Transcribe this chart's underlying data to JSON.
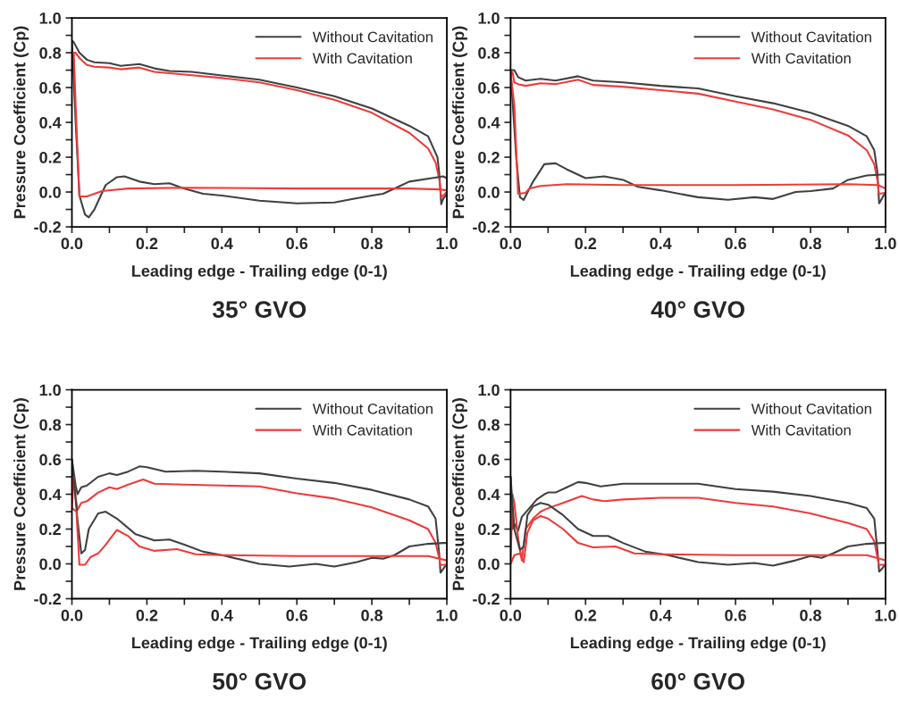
{
  "chart_data": [
    {
      "type": "line",
      "title": "35° GVO",
      "xlabel": "Leading edge - Trailing edge (0-1)",
      "ylabel": "Pressure Coefficient (Cp)",
      "xlim": [
        0,
        1
      ],
      "ylim": [
        -0.2,
        1
      ],
      "legend": "top right",
      "grid": false,
      "xticks": [
        {
          "value": 0,
          "label": "0.0"
        },
        {
          "value": 0.1,
          "label": null
        },
        {
          "value": 0.2,
          "label": "0.2"
        },
        {
          "value": 0.3,
          "label": null
        },
        {
          "value": 0.4,
          "label": "0.4"
        },
        {
          "value": 0.5,
          "label": null
        },
        {
          "value": 0.6,
          "label": "0.6"
        },
        {
          "value": 0.7,
          "label": null
        },
        {
          "value": 0.8,
          "label": "0.8"
        },
        {
          "value": 0.9,
          "label": null
        },
        {
          "value": 1,
          "label": "1.0"
        }
      ],
      "yticks": [
        {
          "value": -0.2,
          "label": "-0.2"
        },
        {
          "value": -0.1,
          "label": null
        },
        {
          "value": 0,
          "label": "0.0"
        },
        {
          "value": 0.1,
          "label": null
        },
        {
          "value": 0.2,
          "label": "0.2"
        },
        {
          "value": 0.3,
          "label": null
        },
        {
          "value": 0.4,
          "label": "0.4"
        },
        {
          "value": 0.5,
          "label": null
        },
        {
          "value": 0.6,
          "label": "0.6"
        },
        {
          "value": 0.7,
          "label": null
        },
        {
          "value": 0.8,
          "label": "0.8"
        },
        {
          "value": 0.9,
          "label": null
        },
        {
          "value": 1,
          "label": "1.0"
        }
      ],
      "series": [
        {
          "name": "Without Cavitation",
          "color": "#404040",
          "x": [
            0,
            0.005,
            0.02,
            0.04,
            0.06,
            0.1,
            0.13,
            0.18,
            0.22,
            0.26,
            0.32,
            0.4,
            0.5,
            0.6,
            0.7,
            0.8,
            0.9,
            0.95,
            0.975,
            0.98,
            0.985,
            0.99,
            1.0
          ],
          "values": [
            0.87,
            0.86,
            0.8,
            0.76,
            0.745,
            0.74,
            0.725,
            0.735,
            0.71,
            0.695,
            0.69,
            0.67,
            0.645,
            0.6,
            0.55,
            0.48,
            0.38,
            0.32,
            0.2,
            0.1,
            -0.07,
            -0.04,
            -0.01
          ]
        },
        {
          "name": "With Cavitation",
          "color": "#ee3b3b",
          "x": [
            0,
            0.01,
            0.02,
            0.04,
            0.06,
            0.1,
            0.13,
            0.18,
            0.22,
            0.3,
            0.4,
            0.5,
            0.6,
            0.7,
            0.8,
            0.9,
            0.95,
            0.97,
            0.98,
            0.985,
            1.0
          ],
          "values": [
            0.8,
            0.8,
            0.77,
            0.73,
            0.72,
            0.715,
            0.705,
            0.715,
            0.69,
            0.675,
            0.655,
            0.63,
            0.585,
            0.53,
            0.455,
            0.34,
            0.25,
            0.17,
            0.07,
            -0.03,
            0.0
          ]
        },
        {
          "color": "#404040",
          "x": [
            0,
            0.01,
            0.02,
            0.035,
            0.045,
            0.06,
            0.09,
            0.12,
            0.14,
            0.18,
            0.22,
            0.26,
            0.3,
            0.35,
            0.4,
            0.5,
            0.6,
            0.7,
            0.75,
            0.8,
            0.83,
            0.87,
            0.9,
            0.96,
            0.99,
            1.0
          ],
          "values": [
            0.87,
            0.4,
            -0.02,
            -0.13,
            -0.145,
            -0.1,
            0.04,
            0.085,
            0.09,
            0.06,
            0.045,
            0.05,
            0.02,
            -0.01,
            -0.02,
            -0.05,
            -0.065,
            -0.06,
            -0.04,
            -0.02,
            -0.01,
            0.03,
            0.06,
            0.08,
            0.09,
            0.08
          ]
        },
        {
          "color": "#ee3b3b",
          "x": [
            0,
            0.005,
            0.01,
            0.02,
            0.04,
            0.08,
            0.15,
            0.3,
            0.6,
            0.9,
            0.98,
            1.0
          ],
          "values": [
            0.8,
            0.8,
            0.5,
            -0.025,
            -0.025,
            0.005,
            0.02,
            0.025,
            0.02,
            0.02,
            0.015,
            0.01
          ]
        }
      ]
    },
    {
      "type": "line",
      "title": "40° GVO",
      "xlabel": "Leading edge - Trailing edge (0-1)",
      "ylabel": "Pressure Coefficient (Cp)",
      "xlim": [
        0,
        1
      ],
      "ylim": [
        -0.2,
        1
      ],
      "legend": "top right",
      "grid": false,
      "xticks": [
        {
          "value": 0,
          "label": "0.0"
        },
        {
          "value": 0.1,
          "label": null
        },
        {
          "value": 0.2,
          "label": "0.2"
        },
        {
          "value": 0.3,
          "label": null
        },
        {
          "value": 0.4,
          "label": "0.4"
        },
        {
          "value": 0.5,
          "label": null
        },
        {
          "value": 0.6,
          "label": "0.6"
        },
        {
          "value": 0.7,
          "label": null
        },
        {
          "value": 0.8,
          "label": "0.8"
        },
        {
          "value": 0.9,
          "label": null
        },
        {
          "value": 1,
          "label": "1.0"
        }
      ],
      "yticks": [
        {
          "value": -0.2,
          "label": "-0.2"
        },
        {
          "value": -0.1,
          "label": null
        },
        {
          "value": 0,
          "label": "0.0"
        },
        {
          "value": 0.1,
          "label": null
        },
        {
          "value": 0.2,
          "label": "0.2"
        },
        {
          "value": 0.3,
          "label": null
        },
        {
          "value": 0.4,
          "label": "0.4"
        },
        {
          "value": 0.5,
          "label": null
        },
        {
          "value": 0.6,
          "label": "0.6"
        },
        {
          "value": 0.7,
          "label": null
        },
        {
          "value": 0.8,
          "label": "0.8"
        },
        {
          "value": 0.9,
          "label": null
        },
        {
          "value": 1,
          "label": "1.0"
        }
      ],
      "series": [
        {
          "name": "Without Cavitation",
          "color": "#404040",
          "x": [
            0,
            0.01,
            0.02,
            0.04,
            0.08,
            0.12,
            0.18,
            0.22,
            0.3,
            0.4,
            0.5,
            0.6,
            0.7,
            0.8,
            0.9,
            0.95,
            0.97,
            0.978,
            0.983,
            0.99,
            1.0
          ],
          "values": [
            0.7,
            0.7,
            0.66,
            0.64,
            0.65,
            0.64,
            0.665,
            0.64,
            0.63,
            0.61,
            0.595,
            0.55,
            0.51,
            0.455,
            0.38,
            0.32,
            0.24,
            0.12,
            -0.065,
            -0.04,
            0.0
          ]
        },
        {
          "name": "With Cavitation",
          "color": "#ee3b3b",
          "x": [
            0,
            0.005,
            0.01,
            0.02,
            0.04,
            0.08,
            0.12,
            0.18,
            0.22,
            0.3,
            0.4,
            0.5,
            0.6,
            0.7,
            0.8,
            0.9,
            0.95,
            0.97,
            0.98,
            0.982,
            1.0
          ],
          "values": [
            0.68,
            0.69,
            0.63,
            0.62,
            0.61,
            0.625,
            0.62,
            0.645,
            0.615,
            0.605,
            0.585,
            0.565,
            0.52,
            0.475,
            0.415,
            0.325,
            0.24,
            0.16,
            0.05,
            -0.01,
            -0.005
          ]
        },
        {
          "color": "#404040",
          "x": [
            0,
            0.015,
            0.025,
            0.035,
            0.06,
            0.09,
            0.12,
            0.15,
            0.2,
            0.25,
            0.3,
            0.34,
            0.4,
            0.5,
            0.58,
            0.65,
            0.7,
            0.76,
            0.8,
            0.86,
            0.9,
            0.95,
            0.99,
            1.0
          ],
          "values": [
            0.7,
            0.2,
            -0.03,
            -0.045,
            0.06,
            0.16,
            0.165,
            0.13,
            0.08,
            0.09,
            0.07,
            0.03,
            0.01,
            -0.03,
            -0.045,
            -0.03,
            -0.04,
            0.0,
            0.005,
            0.02,
            0.07,
            0.095,
            0.1,
            0.1
          ]
        },
        {
          "color": "#ee3b3b",
          "x": [
            0,
            0.01,
            0.02,
            0.04,
            0.05,
            0.08,
            0.15,
            0.3,
            0.6,
            0.9,
            0.98,
            1.0
          ],
          "values": [
            0.68,
            0.5,
            -0.01,
            -0.005,
            0.02,
            0.035,
            0.045,
            0.04,
            0.04,
            0.045,
            0.04,
            0.02
          ]
        }
      ]
    },
    {
      "type": "line",
      "title": "50° GVO",
      "xlabel": "Leading edge - Trailing edge (0-1)",
      "ylabel": "Pressure Coefficient (Cp)",
      "xlim": [
        0,
        1
      ],
      "ylim": [
        -0.2,
        1
      ],
      "legend": "top right",
      "grid": false,
      "xticks": [
        {
          "value": 0,
          "label": "0.0"
        },
        {
          "value": 0.1,
          "label": null
        },
        {
          "value": 0.2,
          "label": "0.2"
        },
        {
          "value": 0.3,
          "label": null
        },
        {
          "value": 0.4,
          "label": "0.4"
        },
        {
          "value": 0.5,
          "label": null
        },
        {
          "value": 0.6,
          "label": "0.6"
        },
        {
          "value": 0.7,
          "label": null
        },
        {
          "value": 0.8,
          "label": "0.8"
        },
        {
          "value": 0.9,
          "label": null
        },
        {
          "value": 1,
          "label": "1.0"
        }
      ],
      "yticks": [
        {
          "value": -0.2,
          "label": "-0.2"
        },
        {
          "value": -0.1,
          "label": null
        },
        {
          "value": 0,
          "label": "0.0"
        },
        {
          "value": 0.1,
          "label": null
        },
        {
          "value": 0.2,
          "label": "0.2"
        },
        {
          "value": 0.3,
          "label": null
        },
        {
          "value": 0.4,
          "label": "0.4"
        },
        {
          "value": 0.5,
          "label": null
        },
        {
          "value": 0.6,
          "label": "0.6"
        },
        {
          "value": 0.7,
          "label": null
        },
        {
          "value": 0.8,
          "label": "0.8"
        },
        {
          "value": 0.9,
          "label": null
        },
        {
          "value": 1,
          "label": "1.0"
        }
      ],
      "series": [
        {
          "name": "Without Cavitation",
          "color": "#404040",
          "x": [
            0,
            0.01,
            0.015,
            0.025,
            0.04,
            0.07,
            0.1,
            0.12,
            0.15,
            0.18,
            0.2,
            0.25,
            0.33,
            0.4,
            0.5,
            0.6,
            0.7,
            0.8,
            0.9,
            0.95,
            0.97,
            0.98,
            0.983,
            0.99,
            1.0
          ],
          "values": [
            0.6,
            0.45,
            0.4,
            0.44,
            0.45,
            0.5,
            0.52,
            0.51,
            0.53,
            0.56,
            0.555,
            0.53,
            0.535,
            0.53,
            0.52,
            0.49,
            0.465,
            0.425,
            0.37,
            0.33,
            0.26,
            0.05,
            -0.05,
            -0.03,
            0.0
          ]
        },
        {
          "name": "With Cavitation",
          "color": "#ee3b3b",
          "x": [
            0,
            0.005,
            0.01,
            0.015,
            0.025,
            0.04,
            0.07,
            0.1,
            0.12,
            0.15,
            0.19,
            0.22,
            0.3,
            0.4,
            0.5,
            0.6,
            0.7,
            0.8,
            0.9,
            0.95,
            0.97,
            0.98,
            0.982,
            1.0
          ],
          "values": [
            0.32,
            0.5,
            0.38,
            0.31,
            0.35,
            0.36,
            0.41,
            0.44,
            0.43,
            0.455,
            0.485,
            0.46,
            0.455,
            0.45,
            0.445,
            0.405,
            0.375,
            0.325,
            0.25,
            0.2,
            0.12,
            0.03,
            -0.005,
            -0.005
          ]
        },
        {
          "color": "#404040",
          "x": [
            0,
            0.015,
            0.025,
            0.035,
            0.045,
            0.07,
            0.09,
            0.12,
            0.17,
            0.22,
            0.26,
            0.3,
            0.35,
            0.4,
            0.5,
            0.58,
            0.65,
            0.7,
            0.76,
            0.8,
            0.83,
            0.86,
            0.9,
            0.95,
            0.99,
            1.0
          ],
          "values": [
            0.6,
            0.25,
            0.06,
            0.08,
            0.2,
            0.29,
            0.3,
            0.26,
            0.17,
            0.135,
            0.14,
            0.11,
            0.07,
            0.05,
            0.0,
            -0.015,
            0.0,
            -0.015,
            0.01,
            0.035,
            0.03,
            0.05,
            0.1,
            0.115,
            0.12,
            0.12
          ]
        },
        {
          "color": "#ee3b3b",
          "x": [
            0,
            0.012,
            0.02,
            0.035,
            0.05,
            0.07,
            0.09,
            0.12,
            0.15,
            0.18,
            0.22,
            0.28,
            0.33,
            0.4,
            0.6,
            0.9,
            0.95,
            1.0
          ],
          "values": [
            0.32,
            0.3,
            -0.005,
            -0.005,
            0.04,
            0.06,
            0.11,
            0.195,
            0.16,
            0.1,
            0.075,
            0.085,
            0.055,
            0.05,
            0.045,
            0.045,
            0.045,
            0.02
          ]
        }
      ]
    },
    {
      "type": "line",
      "title": "60° GVO",
      "xlabel": "Leading edge - Trailing edge (0-1)",
      "ylabel": "Pressure Coefficient (Cp)",
      "xlim": [
        0,
        1
      ],
      "ylim": [
        -0.2,
        1
      ],
      "legend": "top right",
      "grid": false,
      "xticks": [
        {
          "value": 0,
          "label": "0.0"
        },
        {
          "value": 0.1,
          "label": null
        },
        {
          "value": 0.2,
          "label": "0.2"
        },
        {
          "value": 0.3,
          "label": null
        },
        {
          "value": 0.4,
          "label": "0.4"
        },
        {
          "value": 0.5,
          "label": null
        },
        {
          "value": 0.6,
          "label": "0.6"
        },
        {
          "value": 0.7,
          "label": null
        },
        {
          "value": 0.8,
          "label": "0.8"
        },
        {
          "value": 0.9,
          "label": null
        },
        {
          "value": 1,
          "label": "1.0"
        }
      ],
      "yticks": [
        {
          "value": -0.2,
          "label": "-0.2"
        },
        {
          "value": -0.1,
          "label": null
        },
        {
          "value": 0,
          "label": "0.0"
        },
        {
          "value": 0.1,
          "label": null
        },
        {
          "value": 0.2,
          "label": "0.2"
        },
        {
          "value": 0.3,
          "label": null
        },
        {
          "value": 0.4,
          "label": "0.4"
        },
        {
          "value": 0.5,
          "label": null
        },
        {
          "value": 0.6,
          "label": "0.6"
        },
        {
          "value": 0.7,
          "label": null
        },
        {
          "value": 0.8,
          "label": "0.8"
        },
        {
          "value": 0.9,
          "label": null
        },
        {
          "value": 1,
          "label": "1.0"
        }
      ],
      "series": [
        {
          "name": "Without Cavitation",
          "color": "#404040",
          "x": [
            0,
            0.005,
            0.01,
            0.02,
            0.03,
            0.05,
            0.07,
            0.09,
            0.1,
            0.12,
            0.15,
            0.18,
            0.2,
            0.24,
            0.3,
            0.4,
            0.5,
            0.6,
            0.7,
            0.8,
            0.9,
            0.95,
            0.97,
            0.98,
            0.983,
            0.99,
            1.0
          ],
          "values": [
            0.5,
            0.2,
            0.23,
            0.19,
            0.27,
            0.32,
            0.37,
            0.4,
            0.41,
            0.41,
            0.44,
            0.47,
            0.465,
            0.445,
            0.46,
            0.46,
            0.46,
            0.43,
            0.415,
            0.39,
            0.35,
            0.32,
            0.26,
            0.04,
            -0.045,
            -0.03,
            0.0
          ]
        },
        {
          "name": "With Cavitation",
          "color": "#ee3b3b",
          "x": [
            0,
            0.005,
            0.01,
            0.015,
            0.02,
            0.03,
            0.04,
            0.06,
            0.08,
            0.1,
            0.14,
            0.19,
            0.22,
            0.25,
            0.3,
            0.4,
            0.5,
            0.6,
            0.7,
            0.8,
            0.9,
            0.95,
            0.97,
            0.98,
            0.982,
            1.0
          ],
          "values": [
            0.0,
            0.4,
            0.35,
            0.25,
            0.15,
            0.02,
            0.2,
            0.26,
            0.3,
            0.32,
            0.35,
            0.39,
            0.37,
            0.36,
            0.37,
            0.38,
            0.38,
            0.35,
            0.33,
            0.29,
            0.235,
            0.2,
            0.13,
            0.02,
            -0.005,
            -0.005
          ]
        },
        {
          "color": "#404040",
          "x": [
            0,
            0.01,
            0.025,
            0.035,
            0.045,
            0.06,
            0.08,
            0.1,
            0.14,
            0.18,
            0.22,
            0.26,
            0.3,
            0.36,
            0.42,
            0.5,
            0.58,
            0.65,
            0.7,
            0.76,
            0.8,
            0.83,
            0.86,
            0.9,
            0.95,
            0.99,
            1.0
          ],
          "values": [
            0.5,
            0.2,
            0.08,
            0.1,
            0.28,
            0.33,
            0.35,
            0.34,
            0.28,
            0.2,
            0.16,
            0.16,
            0.12,
            0.07,
            0.05,
            0.01,
            -0.005,
            0.005,
            -0.01,
            0.02,
            0.045,
            0.035,
            0.06,
            0.1,
            0.115,
            0.12,
            0.12
          ]
        },
        {
          "color": "#ee3b3b",
          "x": [
            0,
            0.01,
            0.025,
            0.035,
            0.045,
            0.06,
            0.08,
            0.1,
            0.14,
            0.18,
            0.22,
            0.28,
            0.33,
            0.4,
            0.6,
            0.9,
            0.95,
            1.0
          ],
          "values": [
            0.0,
            0.05,
            0.06,
            0.01,
            0.18,
            0.25,
            0.275,
            0.26,
            0.2,
            0.12,
            0.095,
            0.1,
            0.06,
            0.055,
            0.05,
            0.05,
            0.05,
            0.02
          ]
        }
      ]
    }
  ]
}
